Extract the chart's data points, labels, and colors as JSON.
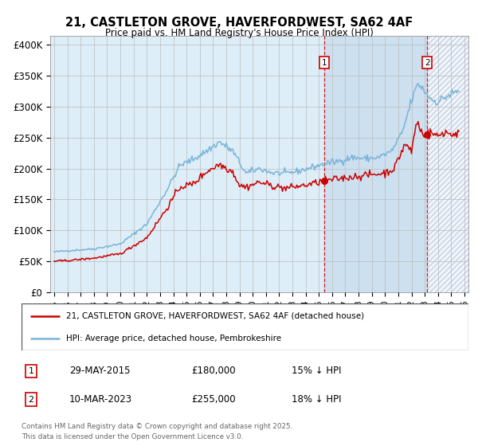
{
  "title_line1": "21, CASTLETON GROVE, HAVERFORDWEST, SA62 4AF",
  "title_line2": "Price paid vs. HM Land Registry's House Price Index (HPI)",
  "hpi_color": "#7ab4d8",
  "price_color": "#cc0000",
  "background_plot": "#ddeef8",
  "highlight_color": "#cce0f0",
  "grid_color": "#bbbbbb",
  "annotation1": {
    "label": "1",
    "date_str": "29-MAY-2015",
    "price": 180000,
    "hpi_pct": "15% ↓ HPI",
    "x": 2015.42
  },
  "annotation2": {
    "label": "2",
    "date_str": "10-MAR-2023",
    "price": 255000,
    "hpi_pct": "18% ↓ HPI",
    "x": 2023.19
  },
  "legend_entry1": "21, CASTLETON GROVE, HAVERFORDWEST, SA62 4AF (detached house)",
  "legend_entry2": "HPI: Average price, detached house, Pembrokeshire",
  "footer": "Contains HM Land Registry data © Crown copyright and database right 2025.\nThis data is licensed under the Open Government Licence v3.0.",
  "yticks": [
    0,
    50000,
    100000,
    150000,
    200000,
    250000,
    300000,
    350000,
    400000
  ],
  "ytick_labels": [
    "£0",
    "£50K",
    "£100K",
    "£150K",
    "£200K",
    "£250K",
    "£300K",
    "£350K",
    "£400K"
  ],
  "ylim": [
    0,
    415000
  ],
  "xlim_left": 1994.7,
  "xlim_right": 2026.3
}
